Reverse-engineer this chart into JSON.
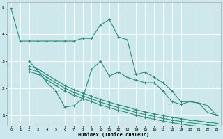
{
  "xlabel": "Humidex (Indice chaleur)",
  "bg_color": "#cce8ec",
  "grid_color": "#ffffff",
  "line_color": "#2e8b7a",
  "x_ticks": [
    0,
    1,
    2,
    3,
    4,
    5,
    6,
    7,
    8,
    9,
    10,
    11,
    12,
    13,
    14,
    15,
    16,
    17,
    18,
    19,
    20,
    21,
    22,
    23
  ],
  "y_ticks": [
    1,
    2,
    3,
    4,
    5
  ],
  "ylim": [
    0.6,
    5.2
  ],
  "xlim": [
    -0.5,
    23.5
  ],
  "line1_x": [
    0,
    1,
    2,
    3,
    4,
    5,
    6,
    7,
    8,
    9,
    10,
    11,
    12,
    13,
    14,
    15,
    16,
    17,
    18,
    19,
    20,
    21,
    22,
    23
  ],
  "line1_y": [
    4.95,
    3.75,
    3.75,
    3.75,
    3.75,
    3.75,
    3.75,
    3.75,
    3.85,
    3.85,
    4.35,
    4.55,
    3.9,
    3.8,
    2.5,
    2.6,
    2.4,
    2.2,
    1.9,
    1.5,
    1.5,
    1.45,
    1.1,
    1.0
  ],
  "line2_x": [
    2,
    3,
    4,
    5,
    6,
    7,
    8,
    9,
    10,
    11,
    12,
    13,
    14,
    15,
    16,
    17,
    18,
    19,
    20,
    21,
    22,
    23
  ],
  "line2_y": [
    3.0,
    2.65,
    2.2,
    1.9,
    1.3,
    1.35,
    1.6,
    2.7,
    3.0,
    2.45,
    2.6,
    2.4,
    2.3,
    2.2,
    2.2,
    1.9,
    1.5,
    1.4,
    1.5,
    1.45,
    1.35,
    1.0
  ],
  "line3_x": [
    2,
    3,
    4,
    5,
    6,
    7,
    8,
    9,
    10,
    11,
    12,
    13,
    14,
    15,
    16,
    17,
    18,
    19,
    20,
    21,
    22,
    23
  ],
  "line3_y": [
    2.82,
    2.72,
    2.5,
    2.3,
    2.1,
    1.95,
    1.82,
    1.7,
    1.58,
    1.48,
    1.38,
    1.3,
    1.2,
    1.12,
    1.05,
    0.98,
    0.92,
    0.87,
    0.82,
    0.78,
    0.74,
    0.7
  ],
  "line4_x": [
    2,
    3,
    4,
    5,
    6,
    7,
    8,
    9,
    10,
    11,
    12,
    13,
    14,
    15,
    16,
    17,
    18,
    19,
    20,
    21,
    22,
    23
  ],
  "line4_y": [
    2.72,
    2.62,
    2.4,
    2.2,
    2.0,
    1.85,
    1.72,
    1.6,
    1.48,
    1.38,
    1.28,
    1.2,
    1.1,
    1.02,
    0.95,
    0.88,
    0.82,
    0.77,
    0.72,
    0.68,
    0.64,
    0.6
  ],
  "line5_x": [
    2,
    3,
    4,
    5,
    6,
    7,
    8,
    9,
    10,
    11,
    12,
    13,
    14,
    15,
    16,
    17,
    18,
    19,
    20,
    21,
    22,
    23
  ],
  "line5_y": [
    2.62,
    2.52,
    2.3,
    2.1,
    1.9,
    1.75,
    1.62,
    1.5,
    1.38,
    1.28,
    1.18,
    1.1,
    1.0,
    0.92,
    0.85,
    0.78,
    0.72,
    0.67,
    0.62,
    0.58,
    0.54,
    0.5
  ]
}
